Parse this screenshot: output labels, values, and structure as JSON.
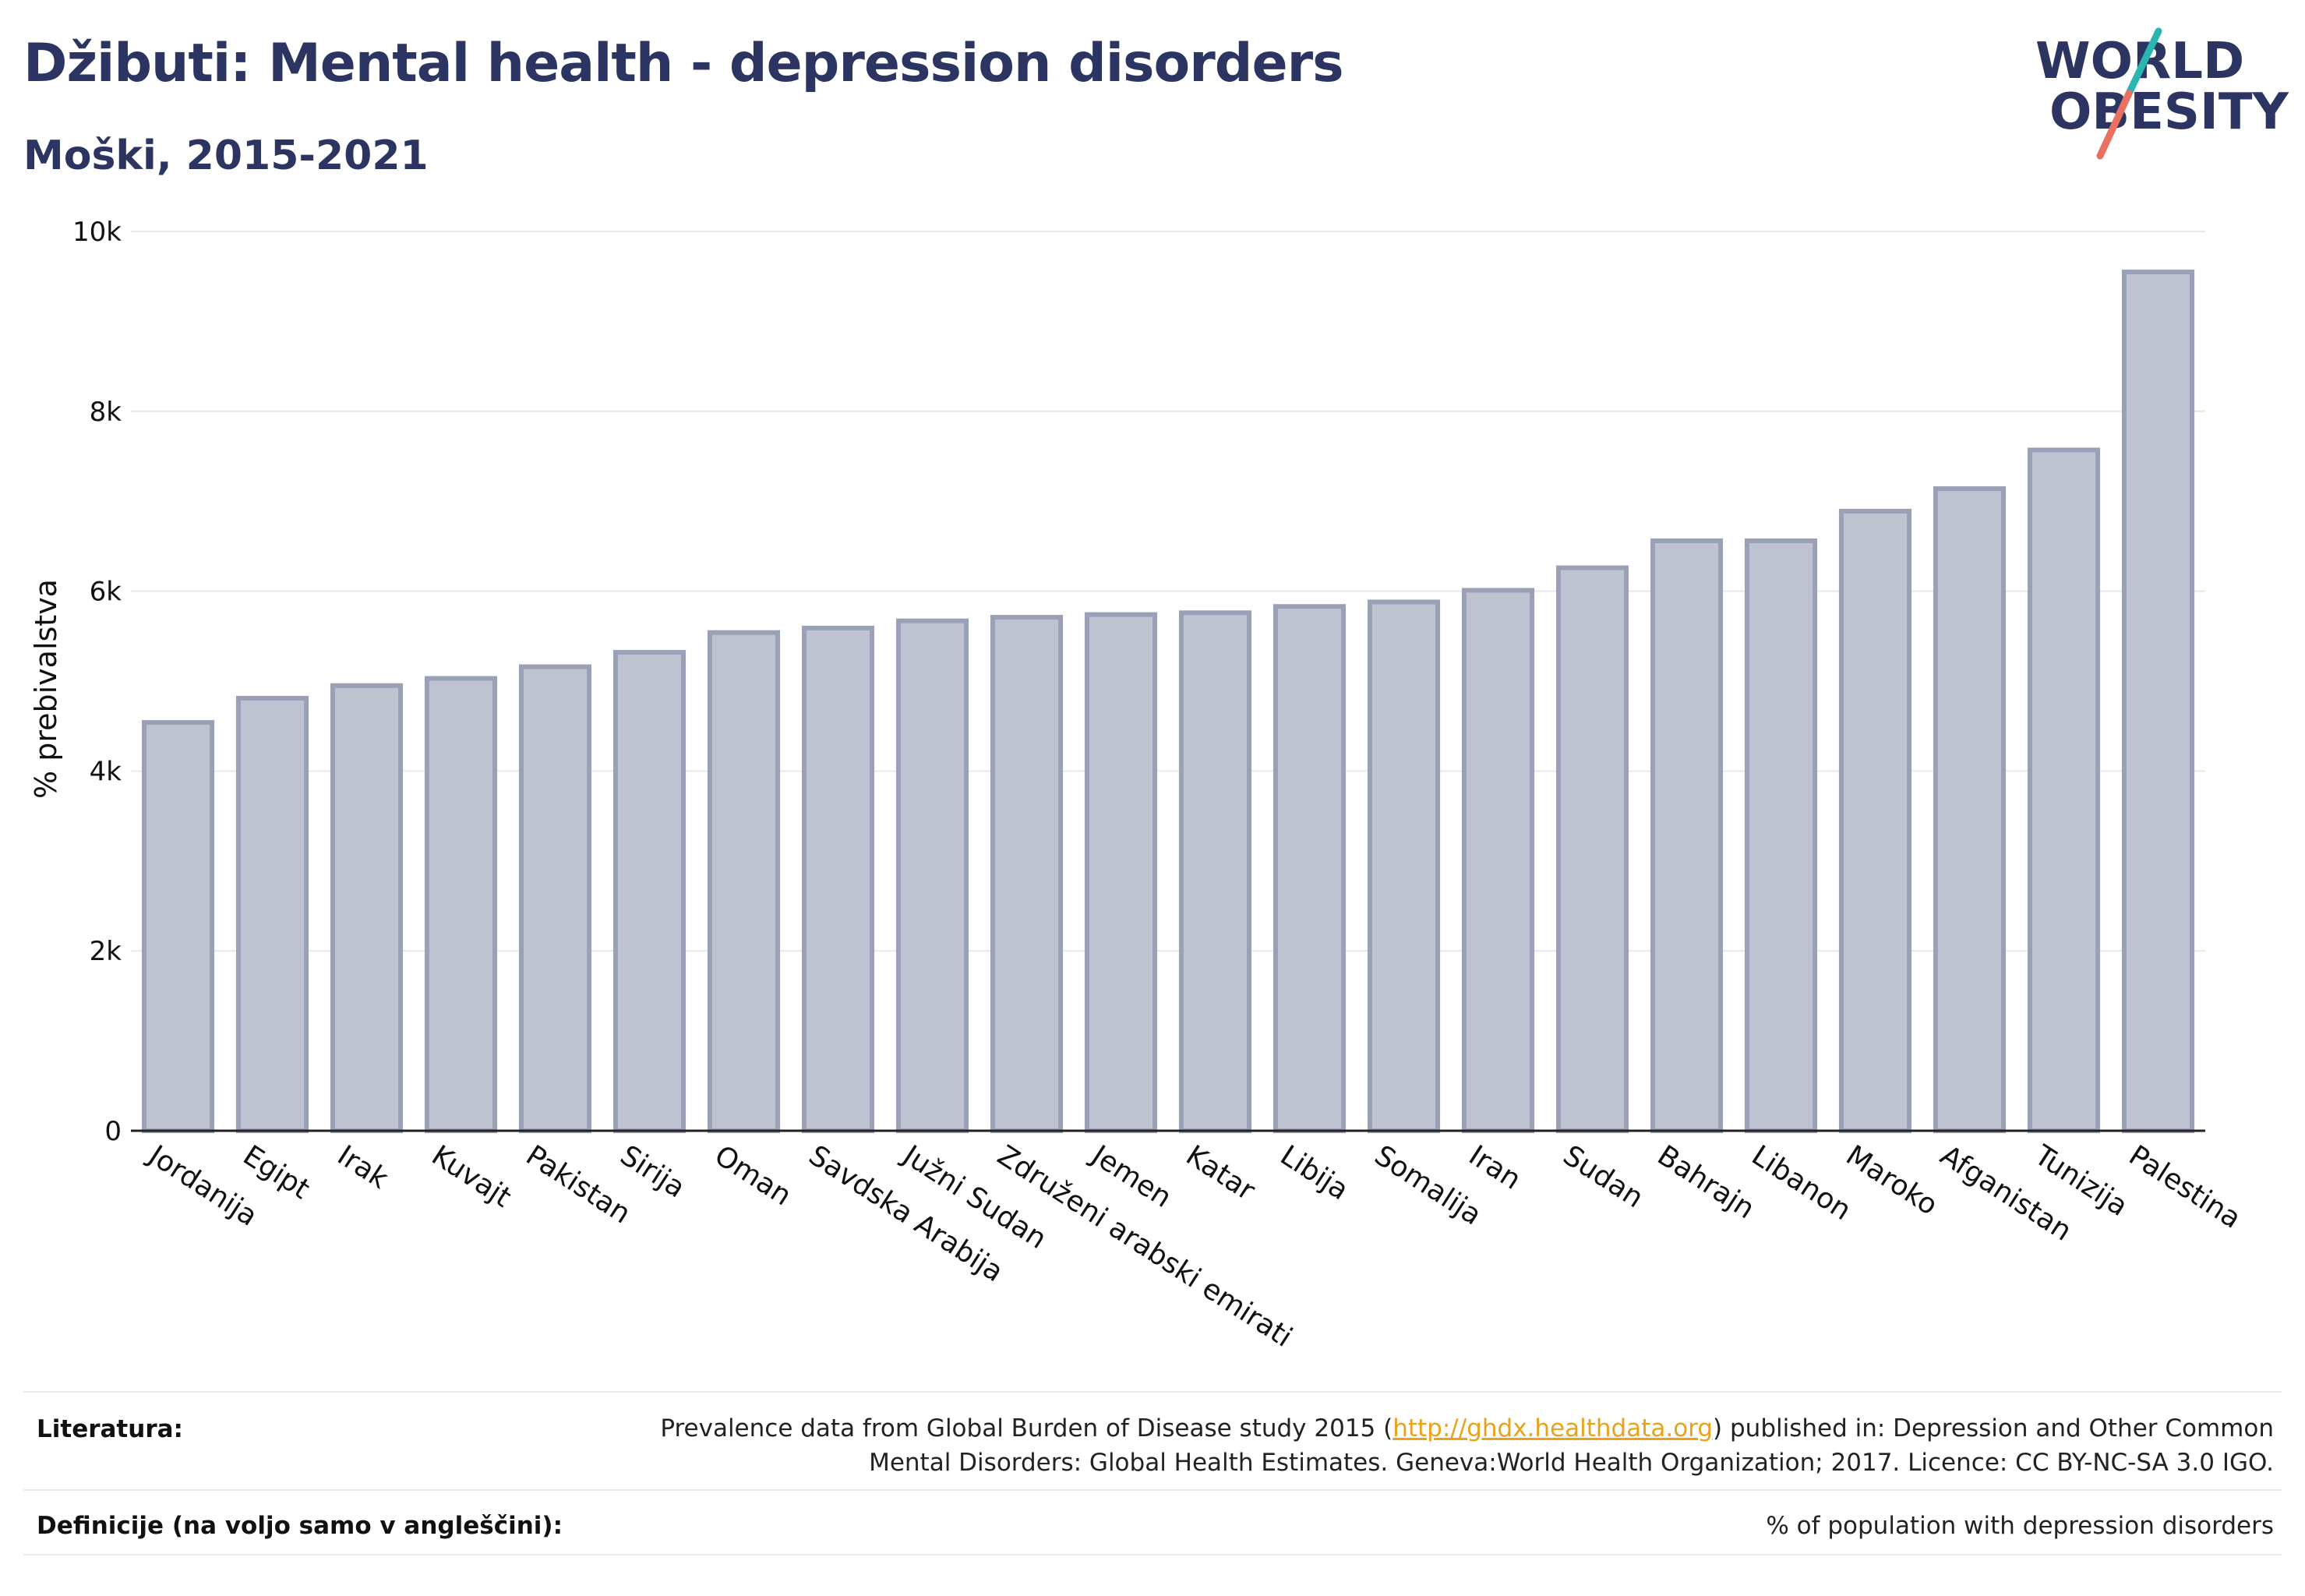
{
  "header": {
    "title": "Džibuti: Mental health - depression disorders",
    "subtitle": "Moški, 2015-2021"
  },
  "logo": {
    "line1": "WORLD",
    "line2": "OBESITY",
    "colors": {
      "text": "#2c3561",
      "slash_teal": "#2bb5b0",
      "slash_coral": "#e8715f"
    }
  },
  "chart_data": {
    "type": "bar",
    "title": "",
    "xlabel": "",
    "ylabel": "% prebivalstva",
    "ylim": [
      0,
      10000
    ],
    "yticks": [
      0,
      2000,
      4000,
      6000,
      8000,
      10000
    ],
    "ytick_labels": [
      "0",
      "2k",
      "4k",
      "6k",
      "8k",
      "10k"
    ],
    "grid": true,
    "categories": [
      "Jordanija",
      "Egipt",
      "Irak",
      "Kuvajt",
      "Pakistan",
      "Sirija",
      "Oman",
      "Savdska Arabija",
      "Južni Sudan",
      "Združeni arabski emirati",
      "Jemen",
      "Katar",
      "Libija",
      "Somalija",
      "Iran",
      "Sudan",
      "Bahrajn",
      "Libanon",
      "Maroko",
      "Afganistan",
      "Tunizija",
      "Palestina"
    ],
    "values": [
      4540,
      4810,
      4950,
      5030,
      5160,
      5320,
      5540,
      5590,
      5670,
      5710,
      5740,
      5760,
      5830,
      5880,
      6010,
      6260,
      6560,
      6560,
      6890,
      7140,
      7570,
      9550
    ],
    "colors": {
      "bar_fill": "#bfc3d1",
      "bar_stroke": "#9aa0b6",
      "grid": "#e6e8ef",
      "axis": "#222222"
    }
  },
  "footer": {
    "sources_label": "Literatura:",
    "sources_prefix": "Prevalence data from Global Burden of Disease study 2015 (",
    "sources_link": "http://ghdx.healthdata.org",
    "sources_suffix_line1": ") published in: Depression and Other Common",
    "sources_line2": "Mental Disorders: Global Health Estimates. Geneva:World Health Organization; 2017. Licence: CC BY-NC-SA 3.0 IGO.",
    "definitions_label": "Definicije (na voljo samo v angleščini):",
    "definitions_text": "% of population with depression disorders"
  }
}
